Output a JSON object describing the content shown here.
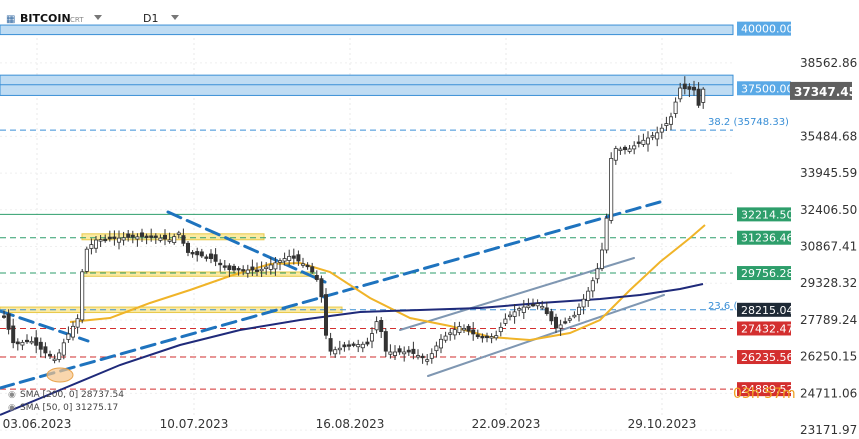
{
  "header": {
    "symbol": "BITCOIN",
    "suffix": "CRT",
    "timeframe": "D1"
  },
  "chart_data": {
    "type": "candlestick",
    "x_ticks": [
      "03.06.2023",
      "10.07.2023",
      "16.08.2023",
      "22.09.2023",
      "29.10.2023"
    ],
    "y_ticks": [
      38562.86,
      35484.68,
      33945.59,
      32406.5,
      30867.41,
      29328.32,
      27789.24,
      26250.15,
      24711.06,
      23171.97
    ],
    "ylim": [
      22800,
      41200
    ],
    "current_price": "37347.45",
    "levels": [
      {
        "value": 40000.0,
        "label": "40000.00",
        "style": "zone-blue",
        "color": "#5aa9e6"
      },
      {
        "value": 37500.0,
        "label": "37500.00",
        "style": "zone-blue",
        "color": "#5aa9e6"
      },
      {
        "value": 35748.33,
        "label": "38.2 (35748.33)",
        "style": "dashed",
        "color": "#3a8fd6"
      },
      {
        "value": 32214.5,
        "label": "32214.50",
        "style": "solid",
        "color": "#2e9e6b"
      },
      {
        "value": 31236.46,
        "label": "31236.46",
        "style": "dashed",
        "color": "#2e9e6b"
      },
      {
        "value": 29756.28,
        "label": "29756.28",
        "style": "dashed",
        "color": "#2e9e6b"
      },
      {
        "value": 28215.04,
        "label": "28215.04",
        "fib": "23.6 (",
        "style": "dashed",
        "color": "#3a8fd6"
      },
      {
        "value": 27432.47,
        "label": "27432.47",
        "style": "dashed",
        "color": "#d32f2f"
      },
      {
        "value": 26235.56,
        "label": "26235.56",
        "style": "dashed",
        "color": "#d32f2f"
      },
      {
        "value": 24889.52,
        "label": "24889.52",
        "style": "dashed",
        "color": "#d32f2f"
      }
    ],
    "sma": [
      {
        "label": "SMA [200, 0] 28737.54",
        "color": "#1f2a7a"
      },
      {
        "label": "SMA [50, 0] 31275.17",
        "color": "#f0b429"
      }
    ],
    "countdown": "03h 57m",
    "colors": {
      "up": "#ffffff",
      "down": "#333333",
      "wick": "#333333",
      "trend": "#1e73be",
      "zone_yellow": "#f7e27a"
    }
  }
}
